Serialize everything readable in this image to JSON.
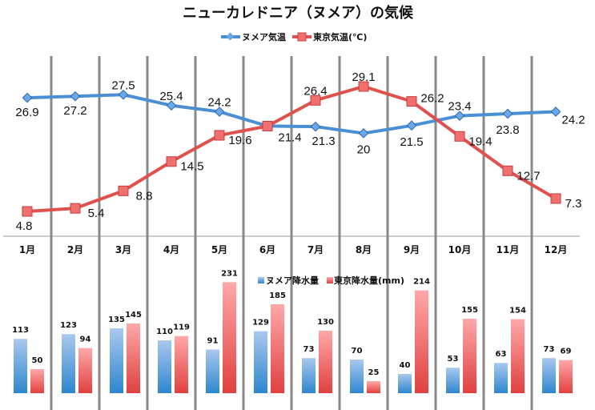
{
  "chart_data": [
    {
      "type": "line",
      "title": "ニューカレドニア（ヌメア）の気候",
      "categories": [
        "1月",
        "2月",
        "3月",
        "4月",
        "5月",
        "6月",
        "7月",
        "8月",
        "9月",
        "10月",
        "11月",
        "12月"
      ],
      "series": [
        {
          "name": "ヌメア気温",
          "color": "#4a8fd4",
          "marker": "diamond",
          "values": [
            26.9,
            27.2,
            27.5,
            25.4,
            24.2,
            21.4,
            21.3,
            20,
            21.5,
            23.4,
            23.8,
            24.2
          ]
        },
        {
          "name": "東京気温(℃)",
          "color": "#e0504c",
          "marker": "square",
          "values": [
            4.8,
            5.4,
            8.8,
            14.5,
            19.6,
            21.4,
            26.4,
            29.1,
            26.2,
            19.4,
            12.7,
            7.3
          ]
        }
      ],
      "legend": "top"
    },
    {
      "type": "bar",
      "categories": [
        "1月",
        "2月",
        "3月",
        "4月",
        "5月",
        "6月",
        "7月",
        "8月",
        "9月",
        "10月",
        "11月",
        "12月"
      ],
      "series": [
        {
          "name": "ヌメア降水量",
          "color": "#4a8fd4",
          "values": [
            113,
            123,
            135,
            110,
            91,
            129,
            73,
            70,
            40,
            53,
            63,
            73
          ]
        },
        {
          "name": "東京降水量(mm)",
          "color": "#e0504c",
          "values": [
            50,
            94,
            145,
            119,
            231,
            185,
            130,
            25,
            214,
            155,
            154,
            69
          ]
        }
      ],
      "legend": "top"
    }
  ]
}
